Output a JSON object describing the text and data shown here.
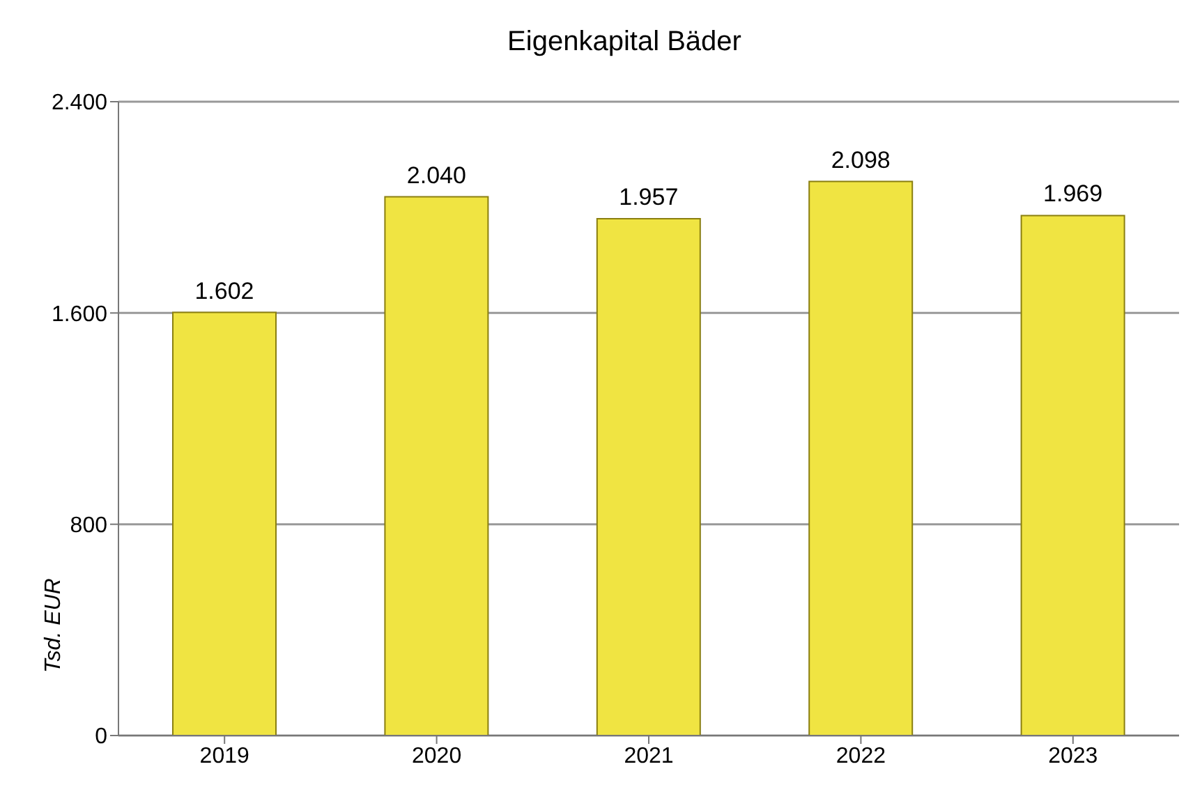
{
  "chart_data": {
    "type": "bar",
    "title": "Eigenkapital Bäder",
    "ylabel": "Tsd. EUR",
    "categories": [
      "2019",
      "2020",
      "2021",
      "2022",
      "2023"
    ],
    "values": [
      1602,
      2040,
      1957,
      2098,
      1969
    ],
    "value_labels": [
      "1.602",
      "2.040",
      "1.957",
      "2.098",
      "1.969"
    ],
    "color": "#f0e442",
    "ylim": [
      0,
      2400
    ],
    "yticks": [
      0,
      800,
      {
        "value": 1600,
        "label": "1.600"
      },
      {
        "value": 2400,
        "label": "2.400"
      }
    ],
    "grid": "y"
  }
}
